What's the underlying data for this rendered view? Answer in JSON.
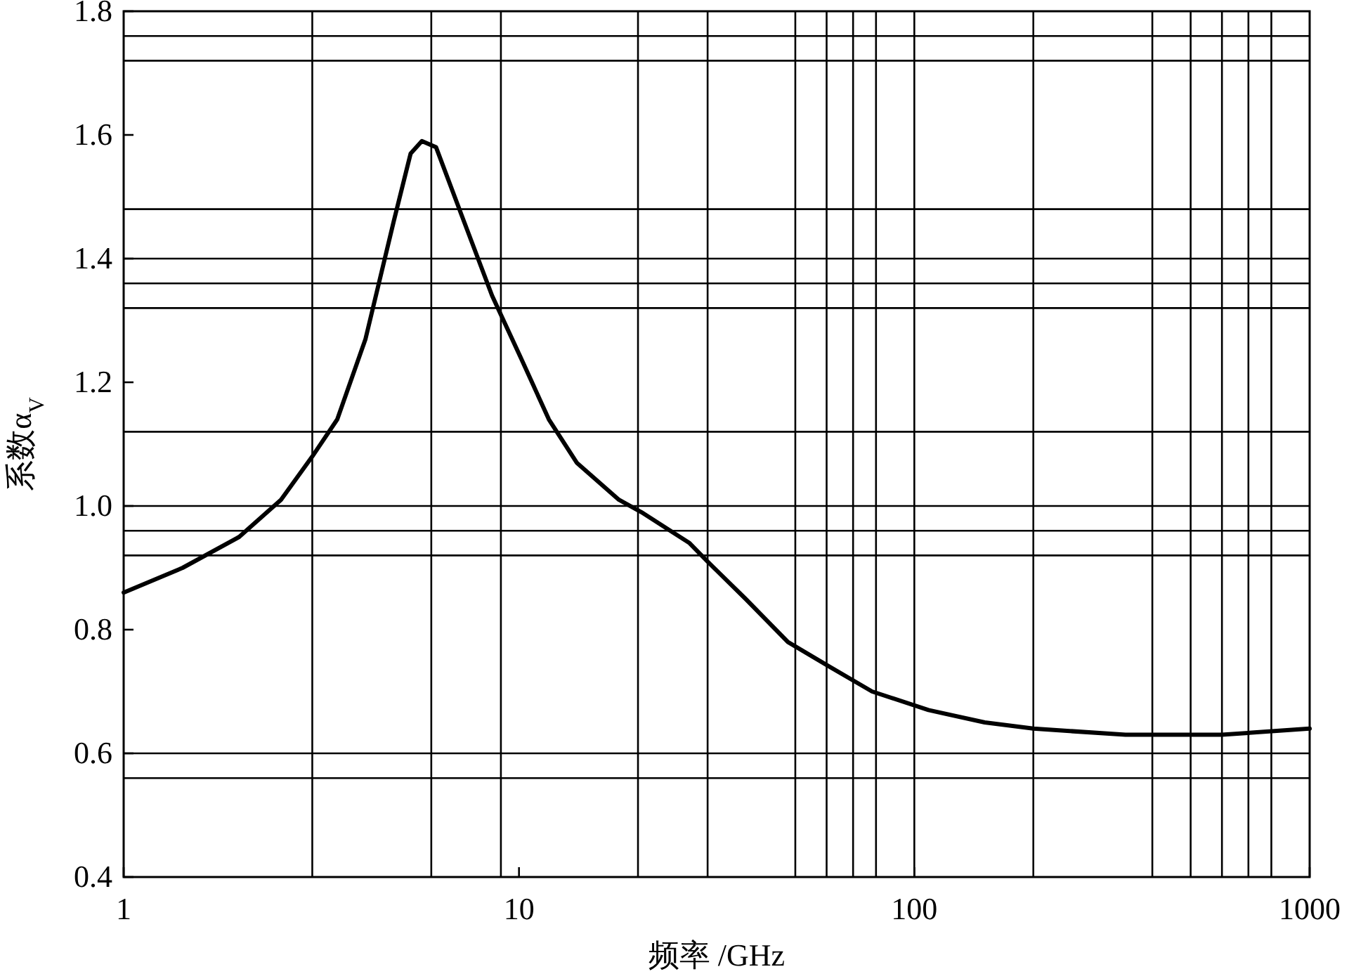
{
  "chart_data": {
    "type": "line",
    "xlabel": "频率 /GHz",
    "ylabel": "系数α$_{V}$",
    "log": "x",
    "xlim": [
      1,
      1000
    ],
    "xticks": [
      1,
      10,
      100,
      1000
    ],
    "ylim": [
      0.4,
      1.8
    ],
    "yticks": [
      0.4,
      0.6,
      0.8,
      {
        "value": 1,
        "label": "1.0"
      },
      1.2,
      1.4,
      1.6,
      1.8
    ],
    "grid": false,
    "marker": "none",
    "line_style": "solid",
    "ref_lines": [
      {
        "axis": "x",
        "value": 3,
        "color": "#000000"
      },
      {
        "axis": "x",
        "value": 6,
        "color": "#000000"
      },
      {
        "axis": "x",
        "value": 9,
        "color": "#000000"
      },
      {
        "axis": "x",
        "value": 20,
        "color": "#000000"
      },
      {
        "axis": "x",
        "value": 30,
        "color": "#000000"
      },
      {
        "axis": "x",
        "value": 50,
        "color": "#000000"
      },
      {
        "axis": "x",
        "value": 60,
        "color": "#000000"
      },
      {
        "axis": "x",
        "value": 70,
        "color": "#000000"
      },
      {
        "axis": "x",
        "value": 80,
        "color": "#000000"
      },
      {
        "axis": "x",
        "value": 100,
        "color": "#000000"
      },
      {
        "axis": "x",
        "value": 200,
        "color": "#000000"
      },
      {
        "axis": "x",
        "value": 400,
        "color": "#000000"
      },
      {
        "axis": "x",
        "value": 500,
        "color": "#000000"
      },
      {
        "axis": "x",
        "value": 600,
        "color": "#000000"
      },
      {
        "axis": "x",
        "value": 700,
        "color": "#000000"
      },
      {
        "axis": "x",
        "value": 800,
        "color": "#000000"
      },
      {
        "axis": "y",
        "value": 1.76,
        "color": "#000000"
      },
      {
        "axis": "y",
        "value": 1.72,
        "color": "#000000"
      },
      {
        "axis": "y",
        "value": 1.48,
        "color": "#000000"
      },
      {
        "axis": "y",
        "value": 1.4,
        "color": "#000000"
      },
      {
        "axis": "y",
        "value": 1.36,
        "color": "#000000"
      },
      {
        "axis": "y",
        "value": 1.32,
        "color": "#000000"
      },
      {
        "axis": "y",
        "value": 1.12,
        "color": "#000000"
      },
      {
        "axis": "y",
        "value": 1.0,
        "color": "#000000"
      },
      {
        "axis": "y",
        "value": 0.96,
        "color": "#000000"
      },
      {
        "axis": "y",
        "value": 0.92,
        "color": "#000000"
      },
      {
        "axis": "y",
        "value": 0.6,
        "color": "#000000"
      },
      {
        "axis": "y",
        "value": 0.56,
        "color": "#000000"
      }
    ],
    "series": [
      {
        "color": "#000000",
        "x": [
          1,
          1.41,
          1.96,
          2.5,
          3,
          3.47,
          4.09,
          4.82,
          5.32,
          5.68,
          6.17,
          7.26,
          8.55,
          10.1,
          11.9,
          14,
          17.9,
          20.4,
          27,
          30,
          37.4,
          47.9,
          61.1,
          78.2,
          108.6,
          150.7,
          200,
          342,
          400,
          600,
          1000
        ],
        "values": [
          0.86,
          0.9,
          0.95,
          1.01,
          1.08,
          1.14,
          1.27,
          1.46,
          1.57,
          1.59,
          1.58,
          1.46,
          1.34,
          1.24,
          1.14,
          1.07,
          1.01,
          0.99,
          0.94,
          0.91,
          0.85,
          0.78,
          0.74,
          0.7,
          0.67,
          0.65,
          0.64,
          0.63,
          0.63,
          0.63,
          0.64
        ]
      }
    ]
  }
}
